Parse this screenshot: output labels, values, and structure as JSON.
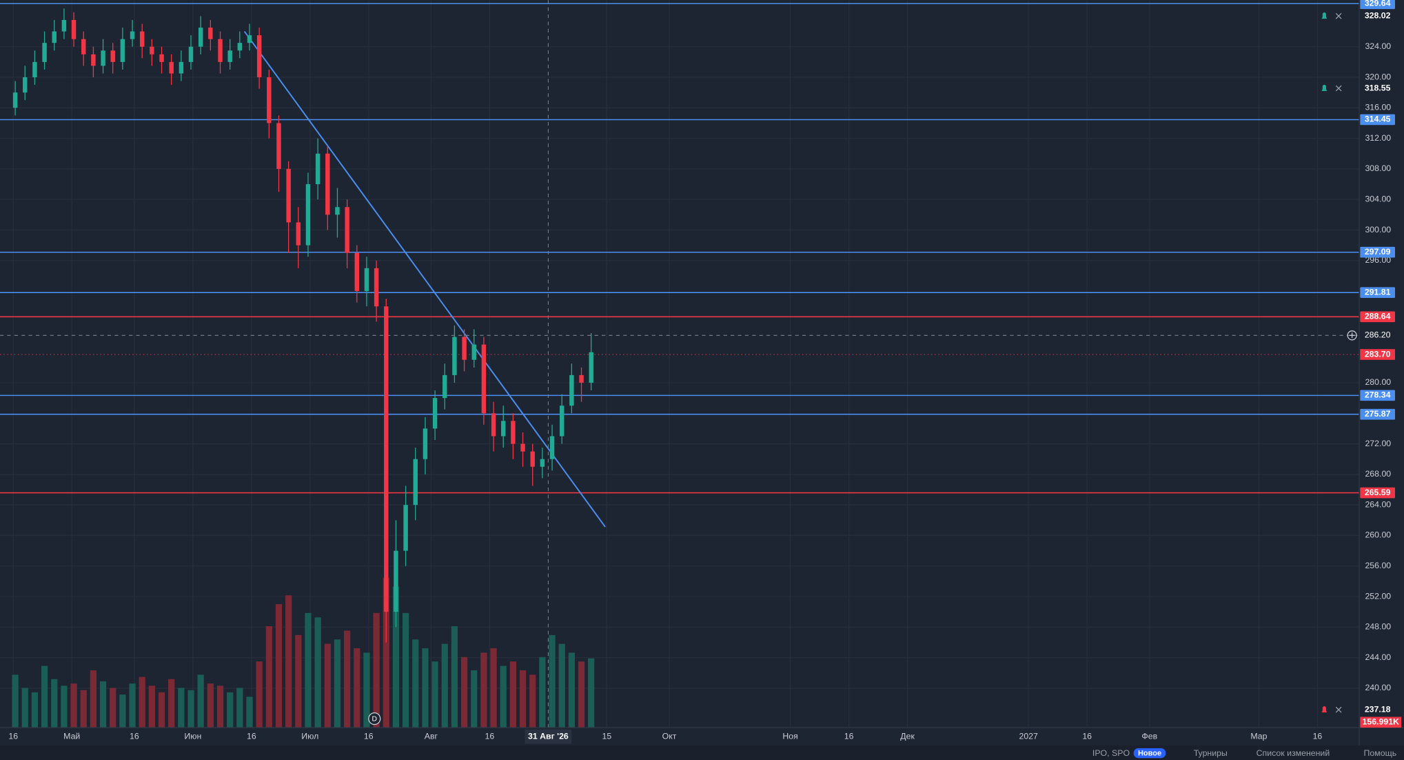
{
  "chart_data": {
    "type": "candlestick",
    "x": [
      0.5,
      3,
      5.5,
      8,
      10.5,
      13,
      15.5,
      18,
      20.5,
      23,
      25.5,
      28,
      30.5,
      33,
      35.5,
      38,
      40.5,
      43,
      45.5,
      48,
      50.5,
      53,
      55.5,
      58,
      60.5,
      63,
      65.5,
      68,
      70.5,
      73,
      75.5,
      78,
      80.5,
      83,
      85.5,
      88,
      90.5,
      93,
      95.5,
      98,
      100.5,
      103,
      105.5,
      108,
      110.5,
      113,
      115.5,
      118,
      120.5,
      123,
      125.5,
      128,
      130.5,
      133,
      135.5,
      138,
      140.5,
      143,
      145.5,
      148
    ],
    "open": [
      316,
      318,
      320,
      322,
      324.5,
      326,
      327.5,
      325,
      323,
      321.5,
      323.5,
      322,
      325,
      326,
      324,
      323,
      322,
      320.5,
      322,
      324,
      326.5,
      325,
      322,
      323.5,
      324.5,
      325.5,
      320,
      314,
      308,
      301,
      298,
      306,
      310,
      302,
      303,
      297,
      292,
      295,
      290,
      250,
      258,
      264,
      270,
      274,
      278,
      281,
      286,
      283,
      285,
      276,
      273,
      275,
      272,
      271,
      269,
      270,
      273,
      277,
      281,
      280
    ],
    "high": [
      319.5,
      321.5,
      323.5,
      326,
      327.5,
      329,
      328.5,
      326,
      324,
      325,
      324.5,
      326.5,
      327.5,
      327,
      325,
      324,
      323,
      323.5,
      325.5,
      328,
      327.5,
      326,
      325,
      326,
      327,
      326.5,
      321,
      315,
      309,
      303,
      307.5,
      312,
      311,
      305.5,
      304,
      298,
      296.5,
      296,
      291,
      262,
      266.5,
      271.5,
      275.5,
      279,
      282.5,
      287.5,
      287,
      287,
      286,
      277.5,
      277,
      276,
      273.5,
      272,
      271.5,
      274.5,
      278.5,
      282.5,
      282,
      286.5
    ],
    "low": [
      315,
      317,
      319,
      321,
      323.5,
      325,
      324,
      321.5,
      320,
      320.5,
      320.5,
      321,
      324,
      322.5,
      321.5,
      320.5,
      319,
      319.5,
      321,
      323,
      323.5,
      320.5,
      321,
      322.5,
      323.5,
      318.5,
      312,
      305,
      297,
      295,
      296.5,
      304,
      300,
      299,
      295,
      290.5,
      290,
      288,
      246,
      248,
      256,
      262,
      268,
      272.5,
      276.5,
      280,
      281.5,
      282,
      274.5,
      271,
      271.5,
      270,
      269,
      266.5,
      267.5,
      268.5,
      272,
      276,
      277.5,
      279
    ],
    "close": [
      318,
      320,
      322,
      324.5,
      326,
      327.5,
      325,
      323,
      321.5,
      323.5,
      322,
      325,
      326,
      324,
      323,
      322,
      320.5,
      322,
      324,
      326.5,
      325,
      322,
      323.5,
      324.5,
      325.5,
      320,
      314,
      308,
      301,
      298,
      306,
      310,
      302,
      303,
      297,
      292,
      295,
      290,
      250,
      258,
      264,
      270,
      274,
      278,
      281,
      286,
      283,
      285,
      276,
      273,
      275,
      272,
      271,
      269,
      270,
      273,
      277,
      281,
      280,
      284
    ],
    "volume": {
      "values": [
        120,
        90,
        80,
        140,
        110,
        95,
        100,
        85,
        130,
        105,
        90,
        75,
        100,
        115,
        95,
        80,
        110,
        90,
        85,
        120,
        100,
        95,
        80,
        90,
        70,
        150,
        230,
        280,
        300,
        210,
        260,
        250,
        190,
        200,
        220,
        180,
        170,
        260,
        340,
        320,
        260,
        200,
        180,
        150,
        190,
        230,
        160,
        130,
        170,
        180,
        140,
        150,
        130,
        120,
        160,
        210,
        190,
        170,
        150,
        156.991
      ],
      "last_label": "156.991K"
    },
    "volume_lim": [
      0,
      1650
    ],
    "up_color": "#22ab94",
    "down_color": "#f23645",
    "volume_up_color": "#1a5e56",
    "volume_down_color": "#7b2a35",
    "xlim": [
      -3.4,
      344.7
    ],
    "xticks": [
      {
        "value": 0,
        "label": "16"
      },
      {
        "value": 15,
        "label": "Май"
      },
      {
        "value": 31,
        "label": "16"
      },
      {
        "value": 46,
        "label": "Июн"
      },
      {
        "value": 61,
        "label": "16"
      },
      {
        "value": 76,
        "label": "Июл"
      },
      {
        "value": 91,
        "label": "16"
      },
      {
        "value": 107,
        "label": "Авг"
      },
      {
        "value": 122,
        "label": "16"
      },
      {
        "value": 152,
        "label": "15"
      },
      {
        "value": 168,
        "label": "Окт"
      },
      {
        "value": 199,
        "label": "Ноя"
      },
      {
        "value": 214,
        "label": "16"
      },
      {
        "value": 229,
        "label": "Дек"
      },
      {
        "value": 260,
        "label": "2027"
      },
      {
        "value": 275,
        "label": "16"
      },
      {
        "value": 291,
        "label": "Фев"
      },
      {
        "value": 319,
        "label": "Мар"
      },
      {
        "value": 334,
        "label": "16"
      }
    ],
    "ylim": [
      234.84,
      330.1
    ],
    "yticks": [
      {
        "value": 240,
        "label": "240.00"
      },
      {
        "value": 244,
        "label": "244.00"
      },
      {
        "value": 248,
        "label": "248.00"
      },
      {
        "value": 252,
        "label": "252.00"
      },
      {
        "value": 256,
        "label": "256.00"
      },
      {
        "value": 260,
        "label": "260.00"
      },
      {
        "value": 264,
        "label": "264.00"
      },
      {
        "value": 268,
        "label": "268.00"
      },
      {
        "value": 272,
        "label": "272.00"
      },
      {
        "value": 280,
        "label": "280.00"
      },
      {
        "value": 296,
        "label": "296.00"
      },
      {
        "value": 300,
        "label": "300.00"
      },
      {
        "value": 304,
        "label": "304.00"
      },
      {
        "value": 308,
        "label": "308.00"
      },
      {
        "value": 312,
        "label": "312.00"
      },
      {
        "value": 316,
        "label": "316.00"
      },
      {
        "value": 320,
        "label": "320.00"
      },
      {
        "value": 324,
        "label": "324.00"
      }
    ],
    "grid": true,
    "hlines": [
      {
        "value": 329.64,
        "color": "#4a8ff0"
      },
      {
        "value": 314.45,
        "color": "#4a8ff0"
      },
      {
        "value": 297.09,
        "color": "#4a8ff0"
      },
      {
        "value": 291.81,
        "color": "#4a8ff0"
      },
      {
        "value": 288.64,
        "color": "#f23645"
      },
      {
        "value": 278.34,
        "color": "#4a8ff0"
      },
      {
        "value": 275.87,
        "color": "#4a8ff0"
      },
      {
        "value": 265.59,
        "color": "#f23645"
      }
    ],
    "alerts": [
      {
        "value": 328.02,
        "color": "#22ab94"
      },
      {
        "value": 318.55,
        "color": "#22ab94"
      },
      {
        "value": 237.18,
        "color": "#f23645"
      }
    ],
    "last_price": {
      "value": 283.7,
      "label": "283.70",
      "color": "#f23645"
    },
    "crosshair": {
      "x": 137,
      "x_label": "31 Авг '26",
      "y": 286.2,
      "y_label": "286.20"
    },
    "trendline": {
      "x": [
        59.2,
        151.6
      ],
      "y": [
        326.0,
        261.12
      ],
      "color": "#4a8ff0"
    },
    "events": [
      {
        "x": 92.5,
        "label": "D"
      }
    ]
  },
  "footer": {
    "items": [
      "IPO, SPO",
      "Новое",
      "Турниры",
      "Список изменений",
      "Помощь"
    ]
  }
}
